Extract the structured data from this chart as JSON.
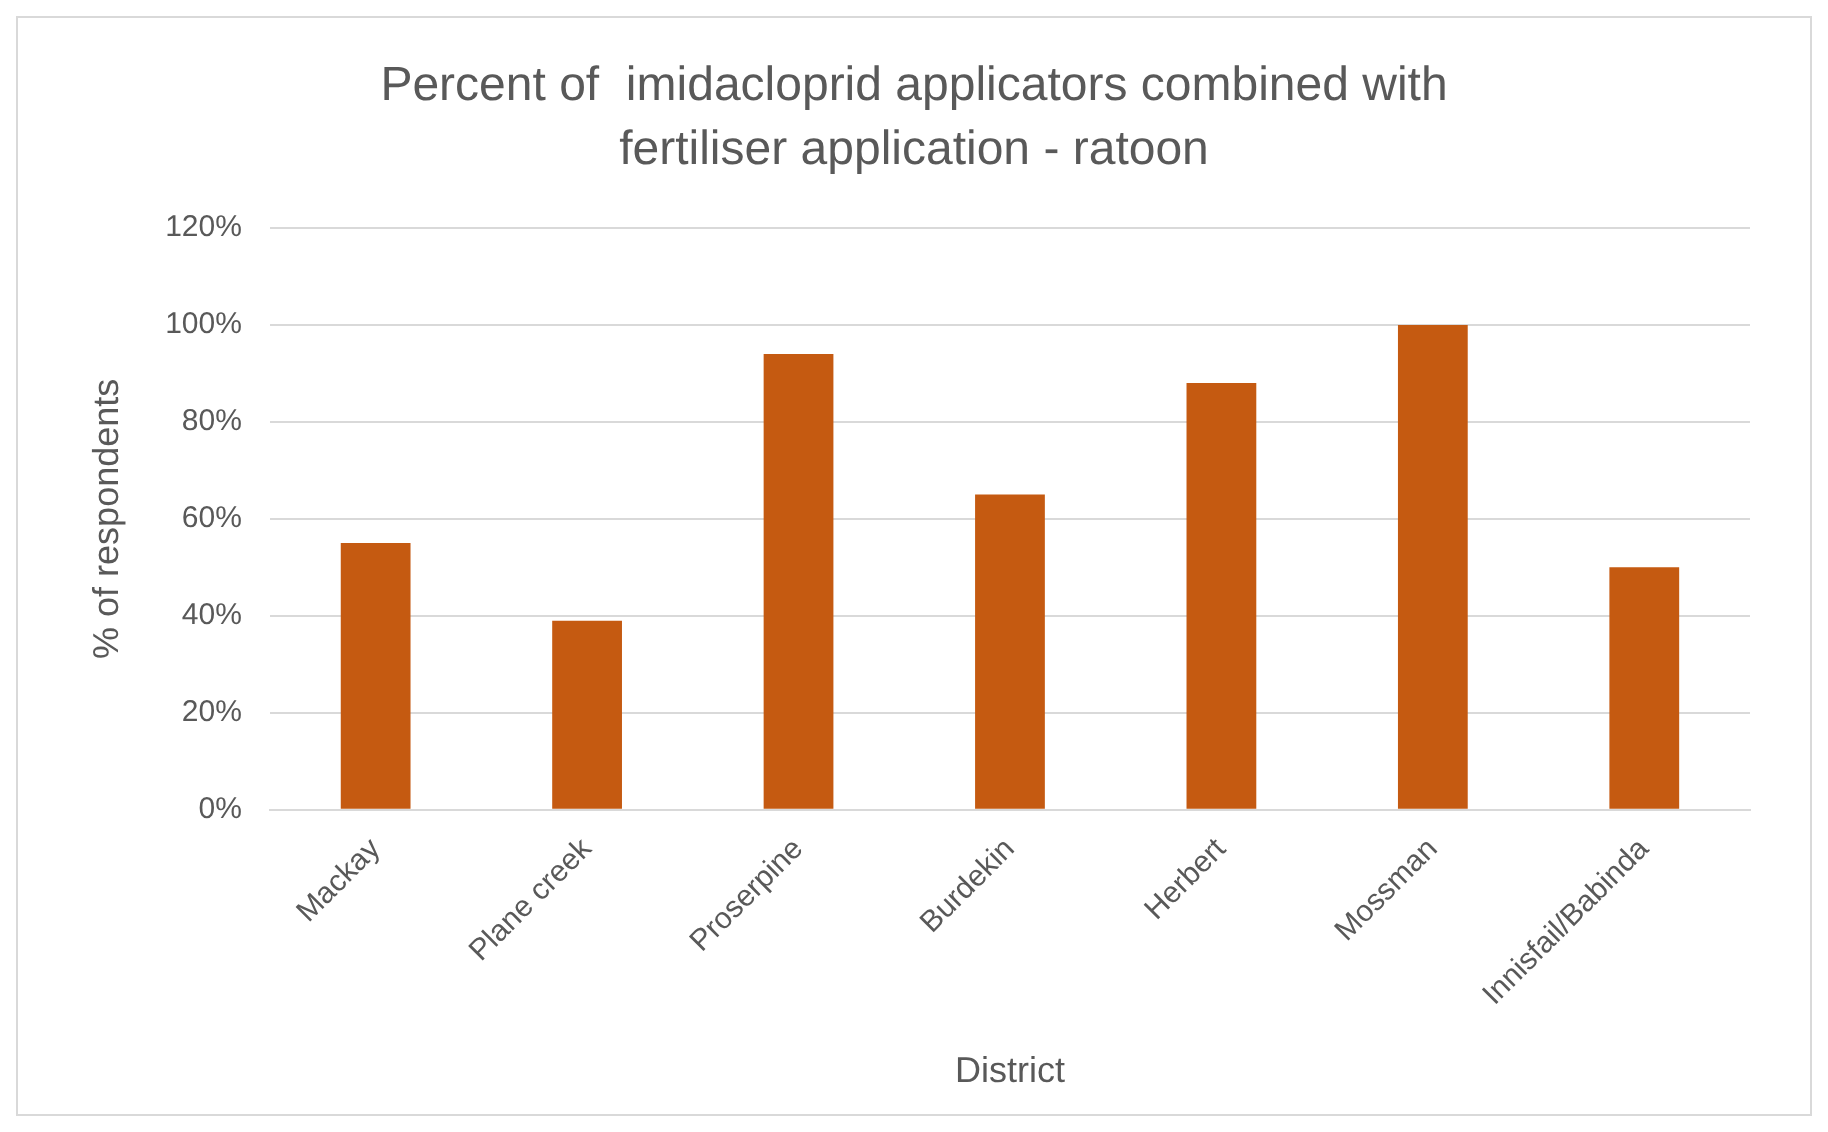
{
  "chart_data": {
    "type": "bar",
    "title": "Percent of  imidacloprid applicators combined with fertiliser application - ratoon",
    "xlabel": "District",
    "ylabel": "% of respondents",
    "categories": [
      "Mackay",
      "Plane creek",
      "Proserpine",
      "Burdekin",
      "Herbert",
      "Mossman",
      "Innisfail/Babinda"
    ],
    "values": [
      55,
      39,
      94,
      65,
      88,
      100,
      50
    ],
    "color": "#c55a11",
    "ylim": [
      0,
      120
    ],
    "yticks": [
      {
        "value": 0,
        "label": "0%"
      },
      {
        "value": 20,
        "label": "20%"
      },
      {
        "value": 40,
        "label": "40%"
      },
      {
        "value": 60,
        "label": "60%"
      },
      {
        "value": 80,
        "label": "80%"
      },
      {
        "value": 100,
        "label": "100%"
      },
      {
        "value": 120,
        "label": "120%"
      }
    ],
    "grid": "y"
  }
}
